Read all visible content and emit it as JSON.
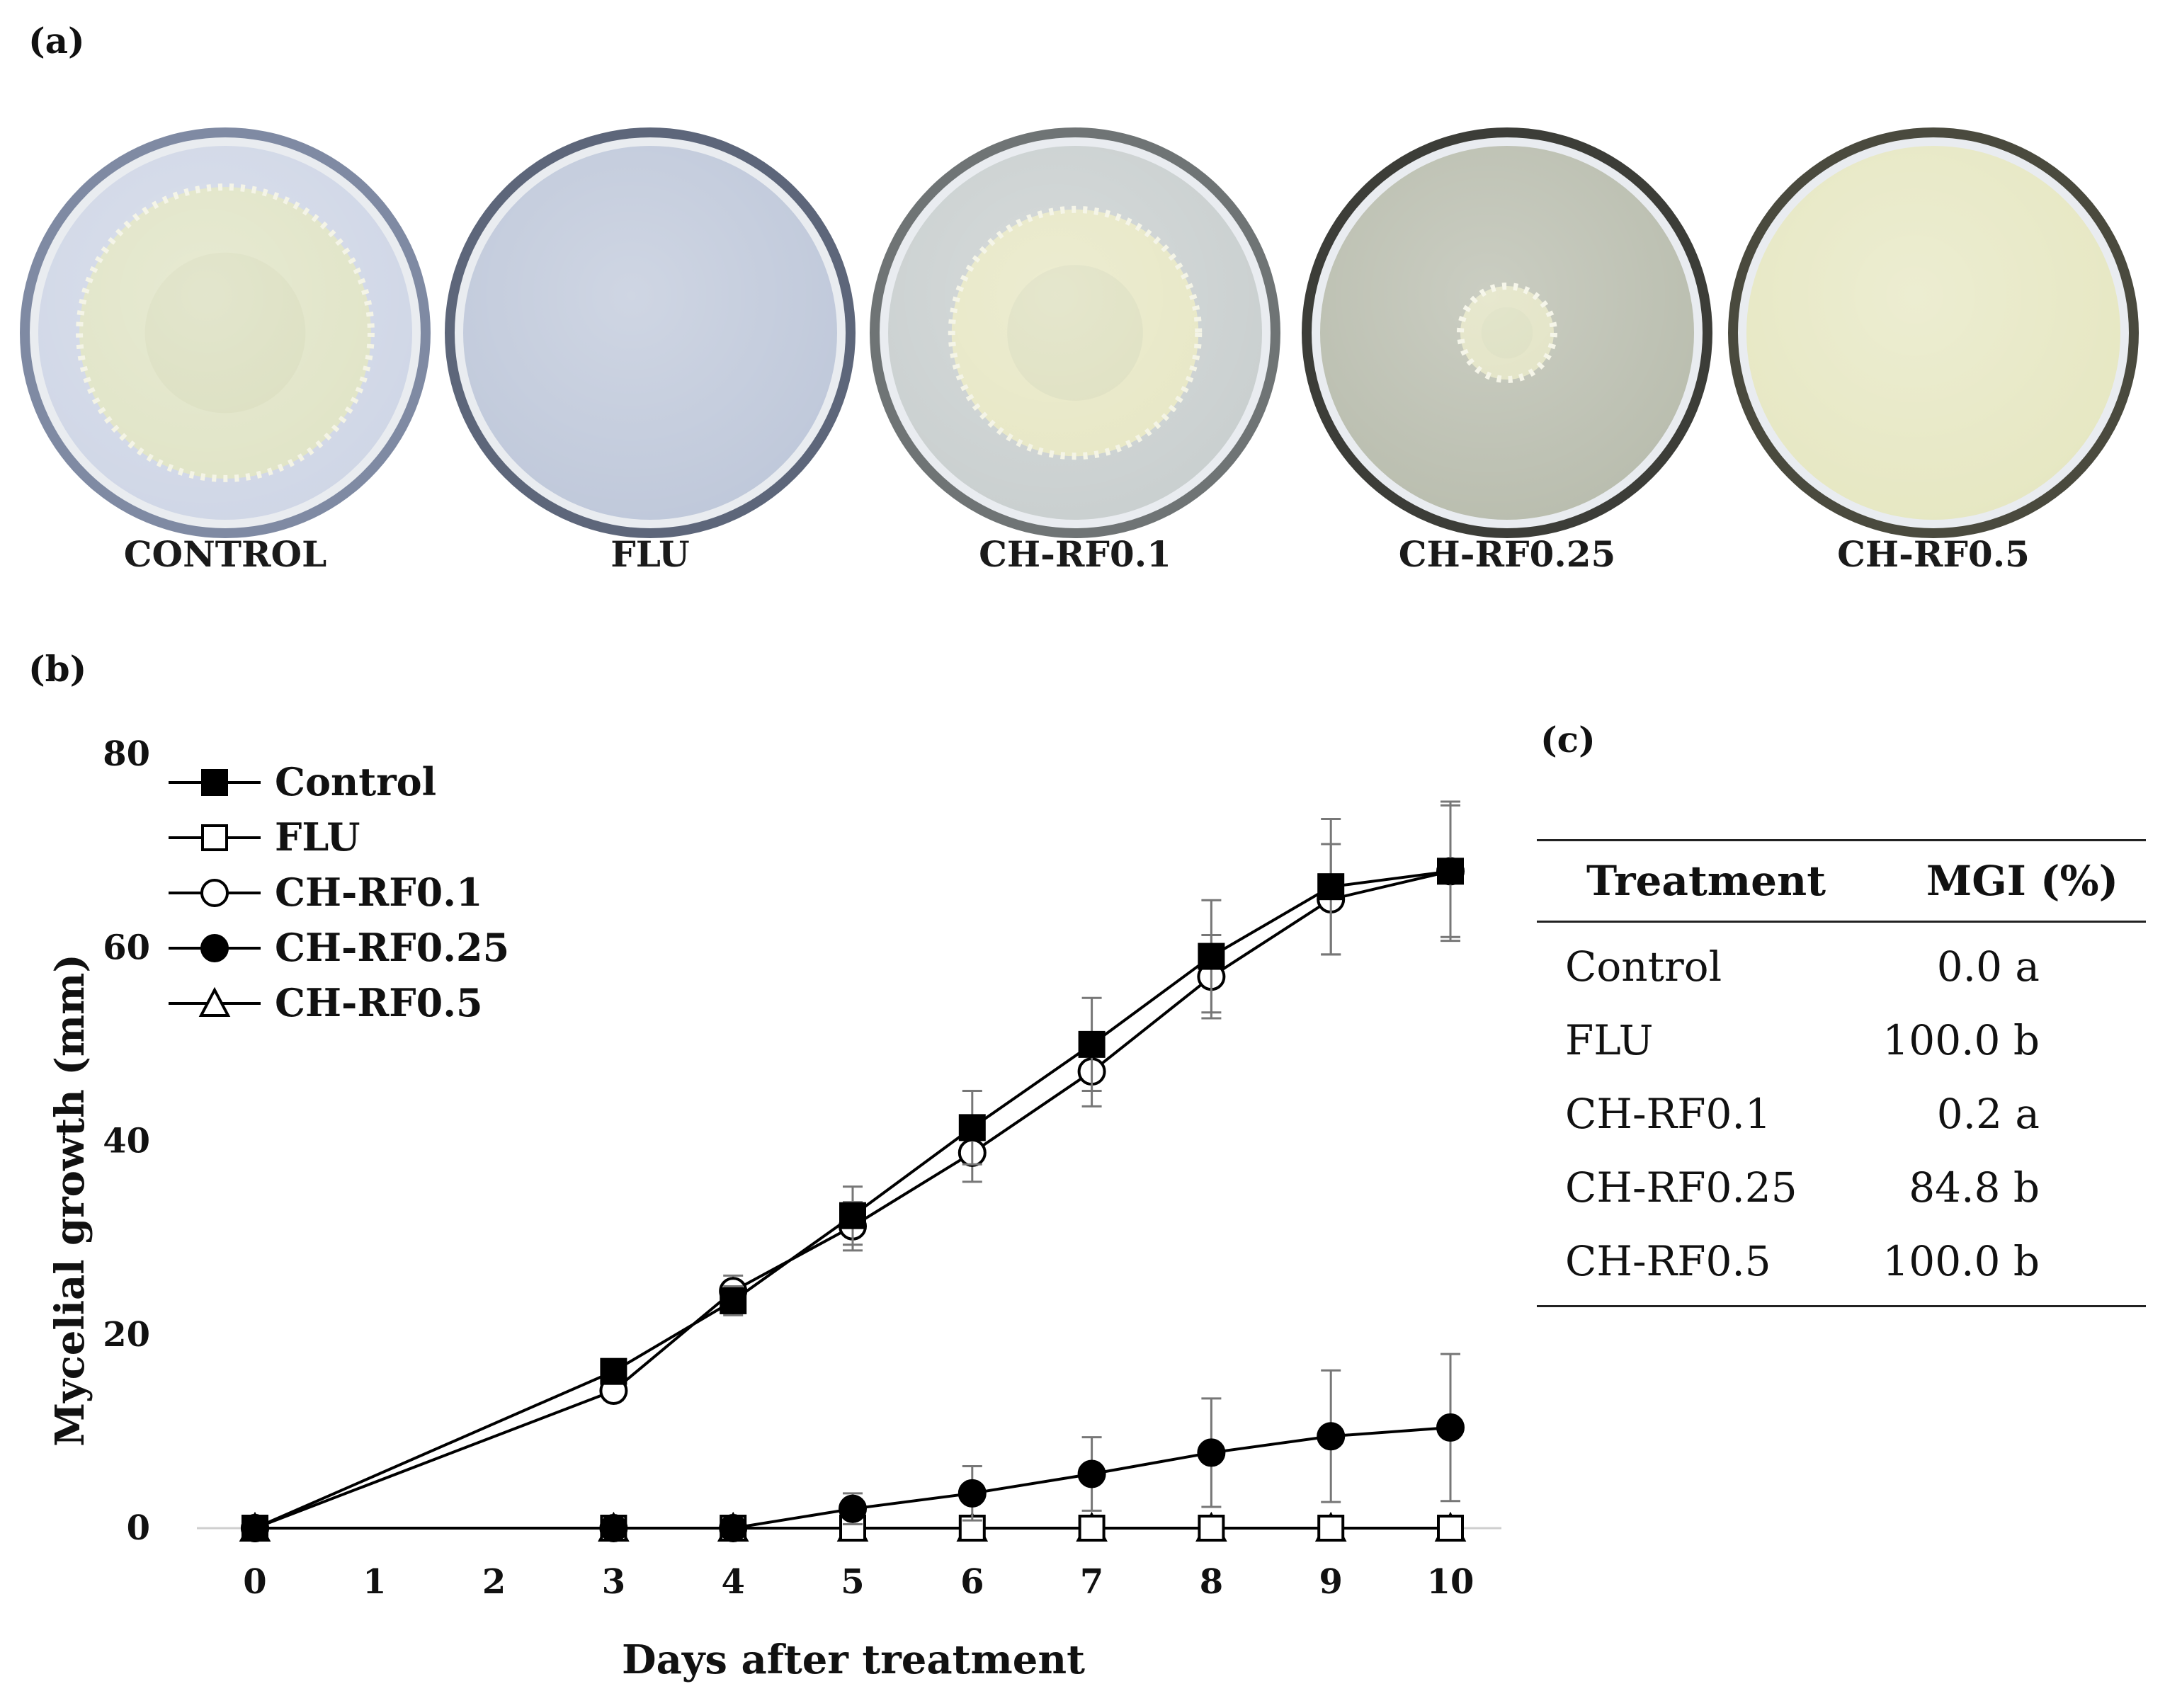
{
  "panels": {
    "a": "(a)",
    "b": "(b)",
    "c": "(c)"
  },
  "plates": [
    {
      "label": "CONTROL",
      "agar": "#cfd6e6",
      "rim": "#7f8aa3",
      "growth": "#dfe3c4",
      "growth_scale": 0.78
    },
    {
      "label": "FLU",
      "agar": "#bfc8da",
      "rim": "#5d667a",
      "growth": null,
      "growth_scale": 0
    },
    {
      "label": "CH-RF0.1",
      "agar": "#c9cfcf",
      "rim": "#6f7475",
      "growth": "#e6e6c2",
      "growth_scale": 0.66
    },
    {
      "label": "CH-RF0.25",
      "agar": "#b9bdae",
      "rim": "#3c3d38",
      "growth": "#dfe0be",
      "growth_scale": 0.25
    },
    {
      "label": "CH-RF0.5",
      "agar": "#e6e7c2",
      "rim": "#4a4a3e",
      "growth": null,
      "growth_scale": 0
    }
  ],
  "chart_data": {
    "type": "line",
    "xlabel": "Days after treatment",
    "ylabel": "Mycelial growth (mm)",
    "xlim": [
      0,
      10
    ],
    "ylim": [
      0,
      80
    ],
    "xticks": [
      0,
      1,
      2,
      3,
      4,
      5,
      6,
      7,
      8,
      9,
      10
    ],
    "yticks": [
      0,
      20,
      40,
      60,
      80
    ],
    "x": [
      0,
      3,
      4,
      5,
      6,
      7,
      8,
      9,
      10
    ],
    "legend_position": "top-left",
    "series": [
      {
        "name": "Control",
        "marker": "square",
        "filled": true,
        "values": [
          0,
          16.2,
          23.5,
          32.3,
          41.4,
          50.0,
          59.1,
          66.3,
          67.9
        ],
        "errors": [
          0,
          0,
          1.5,
          3.0,
          3.8,
          4.8,
          5.8,
          7.0,
          7.2
        ]
      },
      {
        "name": "FLU",
        "marker": "square",
        "filled": false,
        "values": [
          0,
          0,
          0,
          0,
          0,
          0,
          0,
          0,
          0
        ],
        "errors": [
          0,
          0,
          0,
          0,
          0,
          0,
          0,
          0,
          0
        ]
      },
      {
        "name": "CH-RF0.1",
        "marker": "circle",
        "filled": false,
        "values": [
          0,
          14.2,
          24.5,
          31.2,
          38.8,
          47.2,
          57.0,
          65.0,
          67.9
        ],
        "errors": [
          0,
          1.0,
          1.6,
          2.5,
          3.0,
          3.6,
          4.3,
          5.7,
          6.8
        ]
      },
      {
        "name": "CH-RF0.25",
        "marker": "circle",
        "filled": true,
        "values": [
          0,
          0,
          0,
          2.0,
          3.6,
          5.6,
          7.8,
          9.5,
          10.4
        ],
        "errors": [
          0,
          0,
          0,
          1.6,
          2.8,
          3.8,
          5.6,
          6.8,
          7.6
        ]
      },
      {
        "name": "CH-RF0.5",
        "marker": "triangle",
        "filled": false,
        "values": [
          0,
          0,
          0,
          0,
          0,
          0,
          0,
          0,
          0
        ],
        "errors": [
          0,
          0,
          0,
          0,
          0,
          0,
          0,
          0,
          0
        ]
      }
    ]
  },
  "table": {
    "headers": [
      "Treatment",
      "MGI (%)"
    ],
    "rows": [
      [
        "Control",
        "0.0 a"
      ],
      [
        "FLU",
        "100.0 b"
      ],
      [
        "CH-RF0.1",
        "0.2 a"
      ],
      [
        "CH-RF0.25",
        "84.8 b"
      ],
      [
        "CH-RF0.5",
        "100.0 b"
      ]
    ]
  }
}
